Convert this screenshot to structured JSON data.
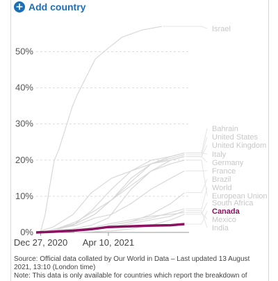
{
  "controls": {
    "add_country_label": "Add country",
    "add_icon": "plus-circle-icon"
  },
  "colors": {
    "accent": "#1d6fb8",
    "highlight": "#8b1060",
    "faded": "#d8d8d8",
    "grid": "#dcdcdc"
  },
  "footer": {
    "source": "Source: Official data collated by Our World in Data – Last updated 13 August 2021, 13:10 (London time)",
    "note": "Note: This data is only available for countries which report the breakdown of"
  },
  "chart_data": {
    "type": "line",
    "title": "",
    "xlabel": "",
    "ylabel": "",
    "x_ticks": [
      "Dec 27, 2020",
      "Apr 10, 2021"
    ],
    "y_ticks": [
      "0%",
      "10%",
      "20%",
      "30%",
      "40%",
      "50%"
    ],
    "ylim": [
      0,
      57
    ],
    "grid": true,
    "legend": "right",
    "x_start": "2020-12-20",
    "x_end": "2021-08-12",
    "series": [
      {
        "name": "Israel",
        "highlight": false,
        "points": [
          [
            "2020-12-20",
            0
          ],
          [
            "2020-12-27",
            0.3
          ],
          [
            "2021-01-03",
            5
          ],
          [
            "2021-01-10",
            13
          ],
          [
            "2021-01-17",
            20
          ],
          [
            "2021-01-24",
            23
          ],
          [
            "2021-01-31",
            27
          ],
          [
            "2021-02-07",
            31
          ],
          [
            "2021-02-14",
            35
          ],
          [
            "2021-02-21",
            38
          ],
          [
            "2021-03-07",
            43
          ],
          [
            "2021-03-21",
            48
          ],
          [
            "2021-04-10",
            51
          ],
          [
            "2021-05-01",
            54
          ],
          [
            "2021-06-01",
            56
          ],
          [
            "2021-07-01",
            57
          ]
        ]
      },
      {
        "name": "Bahrain",
        "highlight": false,
        "points": [
          [
            "2021-01-15",
            0.5
          ],
          [
            "2021-02-15",
            2
          ],
          [
            "2021-03-15",
            6
          ],
          [
            "2021-04-15",
            12
          ],
          [
            "2021-05-15",
            17
          ],
          [
            "2021-06-15",
            20
          ],
          [
            "2021-07-15",
            21
          ],
          [
            "2021-08-05",
            22
          ]
        ]
      },
      {
        "name": "United States",
        "highlight": false,
        "points": [
          [
            "2020-12-20",
            0
          ],
          [
            "2021-01-15",
            1.5
          ],
          [
            "2021-02-15",
            5
          ],
          [
            "2021-03-15",
            11
          ],
          [
            "2021-04-15",
            15
          ],
          [
            "2021-05-15",
            17
          ],
          [
            "2021-06-15",
            19
          ],
          [
            "2021-07-15",
            20.5
          ],
          [
            "2021-08-05",
            21.5
          ]
        ]
      },
      {
        "name": "United Kingdom",
        "highlight": false,
        "points": [
          [
            "2020-12-20",
            0
          ],
          [
            "2021-01-15",
            0.5
          ],
          [
            "2021-02-15",
            1
          ],
          [
            "2021-03-15",
            2
          ],
          [
            "2021-04-10",
            4
          ],
          [
            "2021-05-15",
            12
          ],
          [
            "2021-06-15",
            17
          ],
          [
            "2021-07-15",
            20
          ],
          [
            "2021-08-05",
            21
          ]
        ]
      },
      {
        "name": "Italy",
        "highlight": false,
        "points": [
          [
            "2020-12-27",
            0
          ],
          [
            "2021-01-20",
            1
          ],
          [
            "2021-02-20",
            3
          ],
          [
            "2021-03-20",
            6
          ],
          [
            "2021-04-15",
            9
          ],
          [
            "2021-05-15",
            14
          ],
          [
            "2021-06-15",
            19
          ],
          [
            "2021-07-15",
            21
          ],
          [
            "2021-08-05",
            22
          ]
        ]
      },
      {
        "name": "Germany",
        "highlight": false,
        "points": [
          [
            "2020-12-27",
            0
          ],
          [
            "2021-01-20",
            1
          ],
          [
            "2021-02-20",
            2.5
          ],
          [
            "2021-03-20",
            5
          ],
          [
            "2021-04-15",
            9
          ],
          [
            "2021-05-15",
            15
          ],
          [
            "2021-06-15",
            19
          ],
          [
            "2021-07-15",
            20
          ],
          [
            "2021-08-05",
            21
          ]
        ]
      },
      {
        "name": "France",
        "highlight": false,
        "points": [
          [
            "2020-12-27",
            0
          ],
          [
            "2021-01-20",
            1
          ],
          [
            "2021-02-20",
            2
          ],
          [
            "2021-03-20",
            4
          ],
          [
            "2021-04-15",
            5
          ],
          [
            "2021-05-15",
            8
          ],
          [
            "2021-06-15",
            12
          ],
          [
            "2021-07-15",
            15
          ],
          [
            "2021-08-05",
            17
          ]
        ]
      },
      {
        "name": "Brazil",
        "highlight": false,
        "points": [
          [
            "2021-01-20",
            0
          ],
          [
            "2021-02-20",
            0.5
          ],
          [
            "2021-03-20",
            1
          ],
          [
            "2021-04-15",
            2
          ],
          [
            "2021-05-15",
            3
          ],
          [
            "2021-06-15",
            5
          ],
          [
            "2021-07-15",
            8
          ],
          [
            "2021-08-05",
            11
          ]
        ]
      },
      {
        "name": "World",
        "highlight": false,
        "points": [
          [
            "2020-12-20",
            0
          ],
          [
            "2021-01-20",
            0.2
          ],
          [
            "2021-02-20",
            0.5
          ],
          [
            "2021-03-20",
            1
          ],
          [
            "2021-04-15",
            2
          ],
          [
            "2021-05-15",
            3
          ],
          [
            "2021-06-15",
            4
          ],
          [
            "2021-07-15",
            5.5
          ],
          [
            "2021-08-05",
            6.5
          ]
        ]
      },
      {
        "name": "European Union",
        "highlight": false,
        "points": [
          [
            "2020-12-27",
            0
          ],
          [
            "2021-01-20",
            1
          ],
          [
            "2021-02-20",
            2.5
          ],
          [
            "2021-03-20",
            5
          ],
          [
            "2021-04-15",
            9
          ],
          [
            "2021-05-15",
            13
          ],
          [
            "2021-06-15",
            17
          ],
          [
            "2021-07-15",
            19
          ],
          [
            "2021-08-05",
            20
          ]
        ]
      },
      {
        "name": "South Africa",
        "highlight": false,
        "points": [
          [
            "2021-02-17",
            0
          ],
          [
            "2021-03-20",
            0.2
          ],
          [
            "2021-04-15",
            0.4
          ],
          [
            "2021-05-15",
            1
          ],
          [
            "2021-06-15",
            2
          ],
          [
            "2021-07-15",
            3.5
          ],
          [
            "2021-08-05",
            5
          ]
        ]
      },
      {
        "name": "Canada",
        "highlight": true,
        "points": [
          [
            "2020-12-20",
            0
          ],
          [
            "2021-01-15",
            0.2
          ],
          [
            "2021-02-15",
            0.5
          ],
          [
            "2021-03-15",
            0.9
          ],
          [
            "2021-04-10",
            1.5
          ],
          [
            "2021-05-15",
            1.7
          ],
          [
            "2021-06-15",
            1.9
          ],
          [
            "2021-07-15",
            2
          ],
          [
            "2021-08-05",
            2.3
          ]
        ]
      },
      {
        "name": "Mexico",
        "highlight": false,
        "points": [
          [
            "2020-12-27",
            0
          ],
          [
            "2021-01-20",
            0.3
          ],
          [
            "2021-02-20",
            0.8
          ],
          [
            "2021-03-20",
            1.5
          ],
          [
            "2021-04-15",
            2.5
          ],
          [
            "2021-05-15",
            3.5
          ],
          [
            "2021-06-15",
            4.5
          ],
          [
            "2021-07-15",
            5
          ],
          [
            "2021-08-05",
            5.5
          ]
        ]
      },
      {
        "name": "India",
        "highlight": false,
        "points": [
          [
            "2021-01-20",
            0
          ],
          [
            "2021-02-20",
            0.3
          ],
          [
            "2021-03-20",
            0.8
          ],
          [
            "2021-04-15",
            1.5
          ],
          [
            "2021-05-15",
            2.5
          ],
          [
            "2021-06-15",
            3.5
          ],
          [
            "2021-07-15",
            4.5
          ],
          [
            "2021-08-05",
            6
          ]
        ]
      }
    ]
  }
}
